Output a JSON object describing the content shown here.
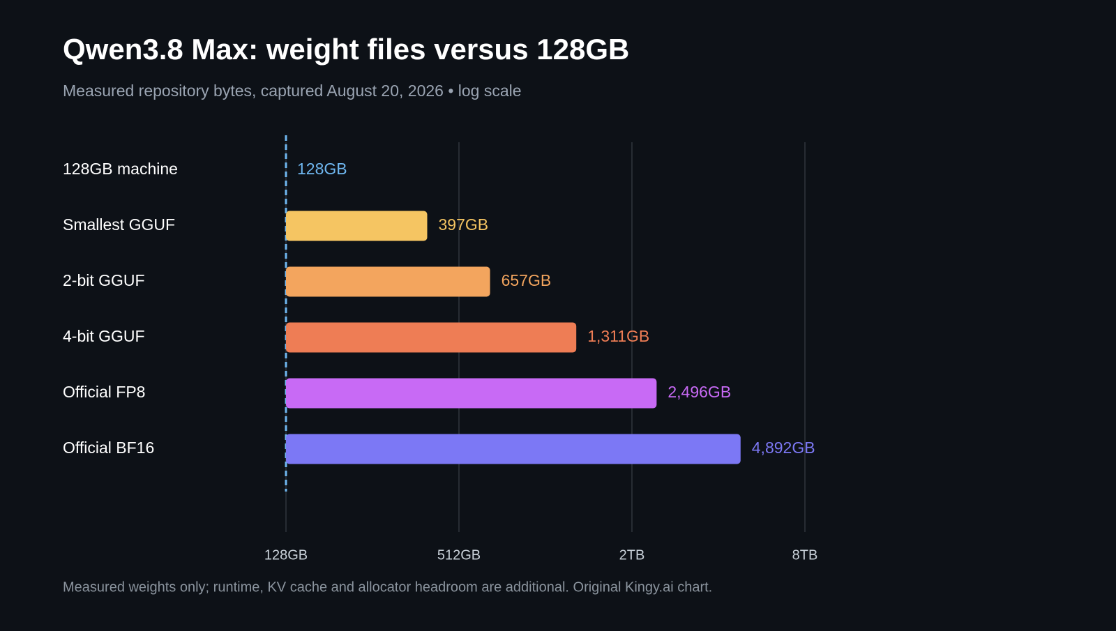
{
  "chart_data": {
    "type": "bar",
    "orientation": "horizontal",
    "title": "Qwen3.8 Max: weight files versus 128GB",
    "subtitle": "Measured repository bytes, captured August 20, 2026 • log scale",
    "categories": [
      "128GB machine",
      "Smallest GGUF",
      "2-bit GGUF",
      "4-bit GGUF",
      "Official FP8",
      "Official BF16"
    ],
    "values": [
      128,
      397,
      657,
      1311,
      2496,
      4892
    ],
    "value_labels": [
      "128GB",
      "397GB",
      "657GB",
      "1,311GB",
      "2,496GB",
      "4,892GB"
    ],
    "colors": [
      "#6fb7f0",
      "#f5c562",
      "#f3a55e",
      "#ee7d55",
      "#c86af5",
      "#7c78f5"
    ],
    "xscale": "log",
    "xlim": [
      128,
      8192
    ],
    "xticks": [
      {
        "value": 128,
        "label": "128GB"
      },
      {
        "value": 512,
        "label": "512GB"
      },
      {
        "value": 2048,
        "label": "2TB"
      },
      {
        "value": 8192,
        "label": "8TB"
      }
    ],
    "grid": true,
    "footnote": "Measured weights only; runtime, KV cache and allocator headroom are additional. Original Kingy.ai chart."
  }
}
